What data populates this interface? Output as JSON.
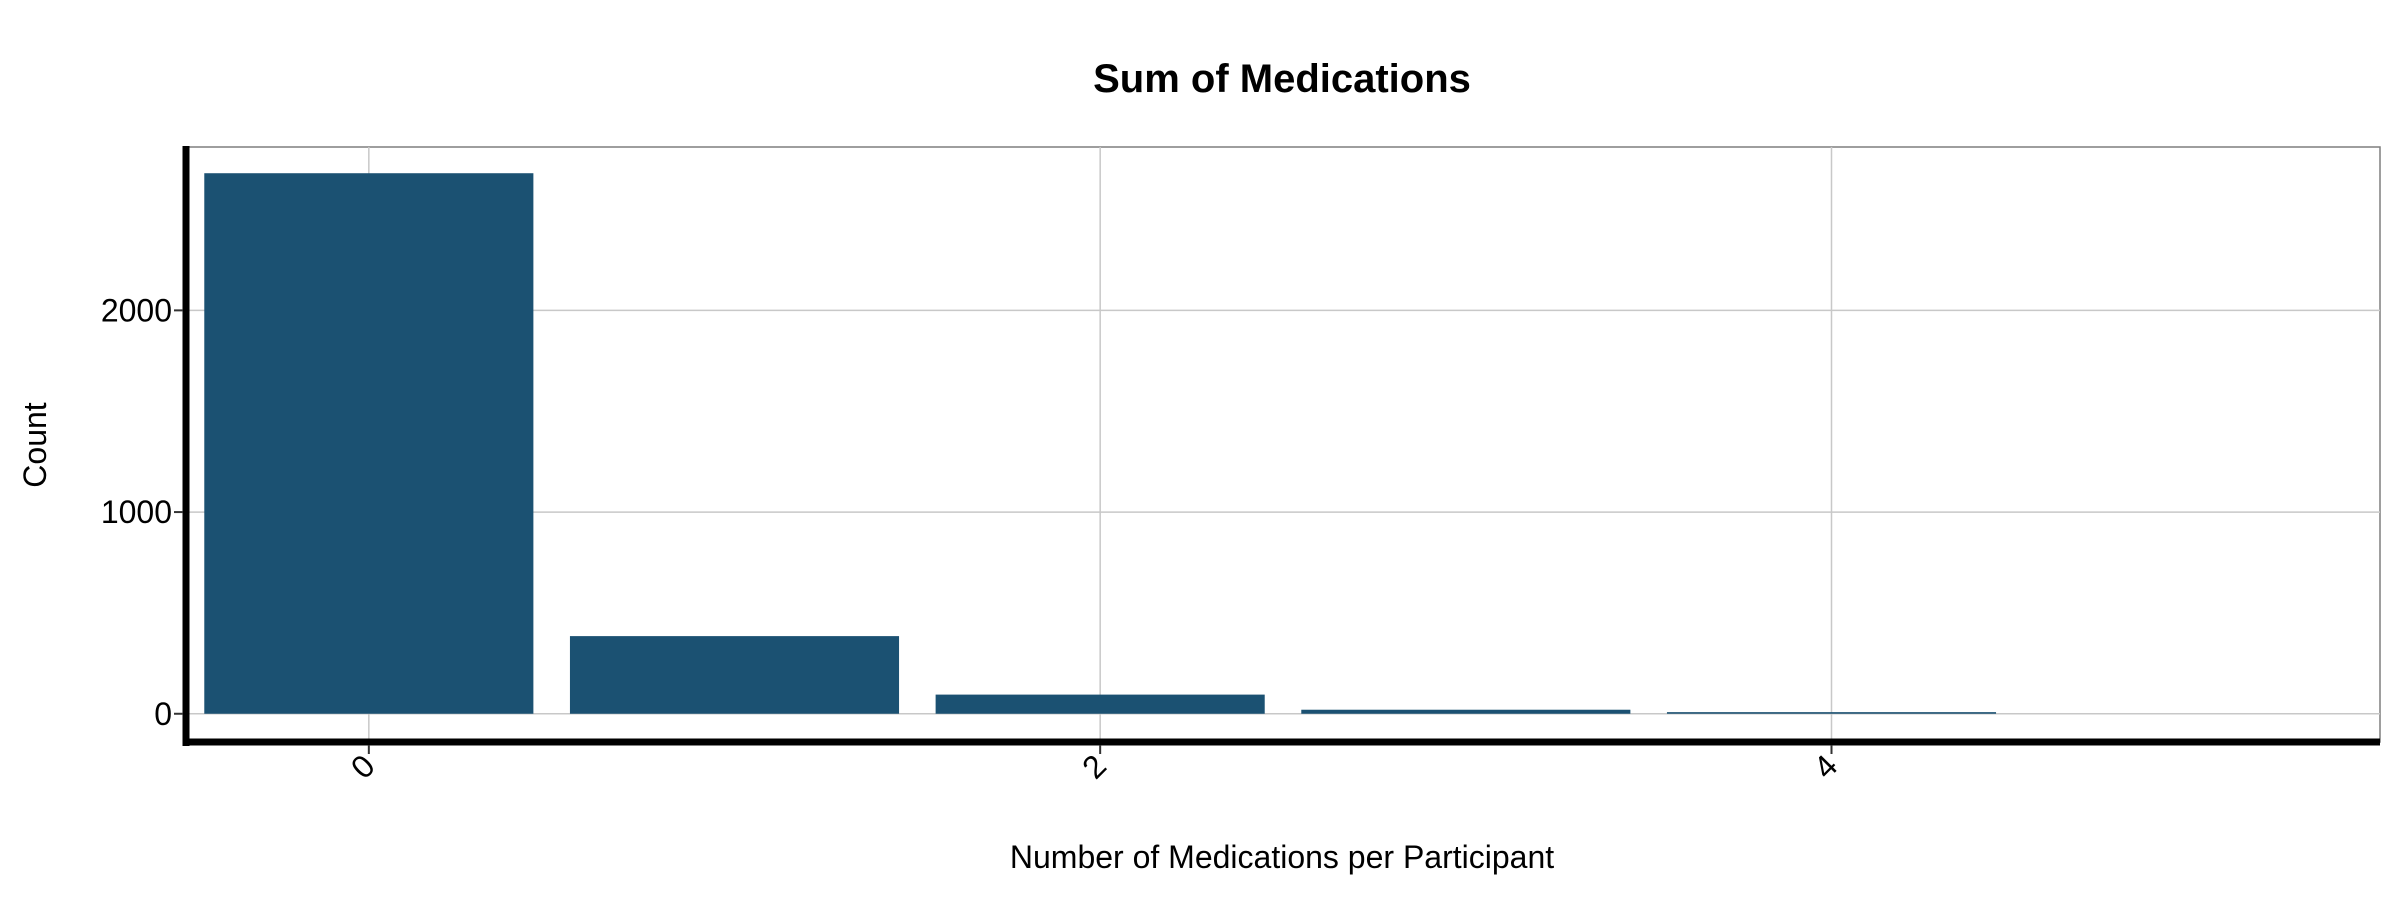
{
  "chart_data": {
    "type": "bar",
    "title": "Sum of Medications",
    "xlabel": "Number of Medications per Participant",
    "ylabel": "Count",
    "x": [
      0,
      1,
      2,
      3,
      4
    ],
    "values": [
      2680,
      385,
      95,
      20,
      8
    ],
    "xlim": [
      -0.5,
      5.5
    ],
    "ylim": [
      -140,
      2810
    ],
    "x_ticks": [
      0,
      2,
      4
    ],
    "y_ticks": [
      0,
      1000,
      2000
    ],
    "grid": true,
    "legend": "none",
    "bar_color": "#1b5172"
  }
}
